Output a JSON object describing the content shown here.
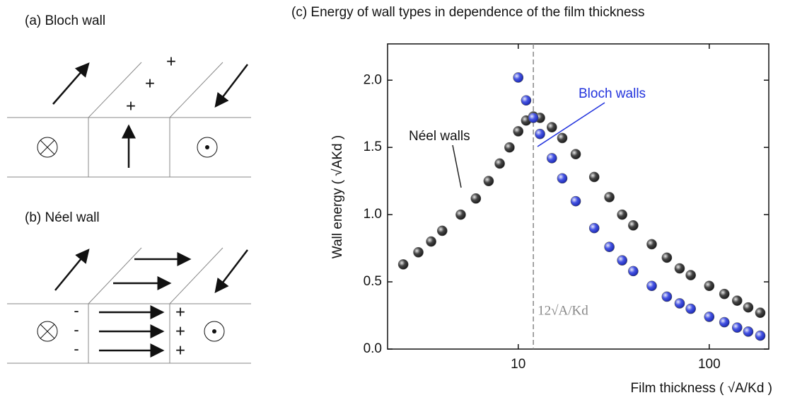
{
  "diagram": {
    "a": {
      "title": "(a) Bloch wall",
      "plus": [
        "+",
        "+",
        "+"
      ]
    },
    "b": {
      "title": "(b) Néel wall",
      "minus": [
        "-",
        "-",
        "-"
      ],
      "plus": [
        "+",
        "+",
        "+"
      ]
    }
  },
  "chart_data": {
    "type": "scatter",
    "title": "(c) Energy of wall types in dependence of the film thickness",
    "xlabel": "Film thickness ( √A/Kd )",
    "ylabel": "Wall energy ( √AKd )",
    "xscale": "log",
    "xlim": [
      2.07,
      205
    ],
    "xticks": [
      10,
      100
    ],
    "ylim": [
      0,
      2.27
    ],
    "yticks": [
      {
        "value": 0,
        "label": "0.0"
      },
      0.5,
      {
        "value": 1,
        "label": "1.0"
      },
      1.5,
      {
        "value": 2,
        "label": "2.0"
      }
    ],
    "vline": {
      "value": 12,
      "label": "12√A/Kd"
    },
    "series": [
      {
        "name": "Néel walls",
        "color": "#222222",
        "x": [
          2.5,
          3,
          3.5,
          4,
          5,
          6,
          7,
          8,
          9,
          10,
          11,
          12,
          13,
          15,
          17,
          20,
          25,
          30,
          35,
          40,
          50,
          60,
          70,
          80,
          100,
          120,
          140,
          160,
          185
        ],
        "values": [
          0.63,
          0.72,
          0.8,
          0.88,
          1.0,
          1.12,
          1.25,
          1.38,
          1.5,
          1.62,
          1.7,
          1.73,
          1.72,
          1.65,
          1.57,
          1.45,
          1.28,
          1.13,
          1.0,
          0.92,
          0.78,
          0.68,
          0.6,
          0.55,
          0.47,
          0.41,
          0.36,
          0.31,
          0.27
        ]
      },
      {
        "name": "Bloch walls",
        "color": "#2233dd",
        "x": [
          10,
          11,
          12,
          13,
          15,
          17,
          20,
          25,
          30,
          35,
          40,
          50,
          60,
          70,
          80,
          100,
          120,
          140,
          160,
          185
        ],
        "values": [
          2.02,
          1.85,
          1.72,
          1.6,
          1.42,
          1.27,
          1.1,
          0.9,
          0.76,
          0.66,
          0.58,
          0.47,
          0.39,
          0.34,
          0.3,
          0.24,
          0.2,
          0.16,
          0.13,
          0.1
        ]
      }
    ]
  }
}
